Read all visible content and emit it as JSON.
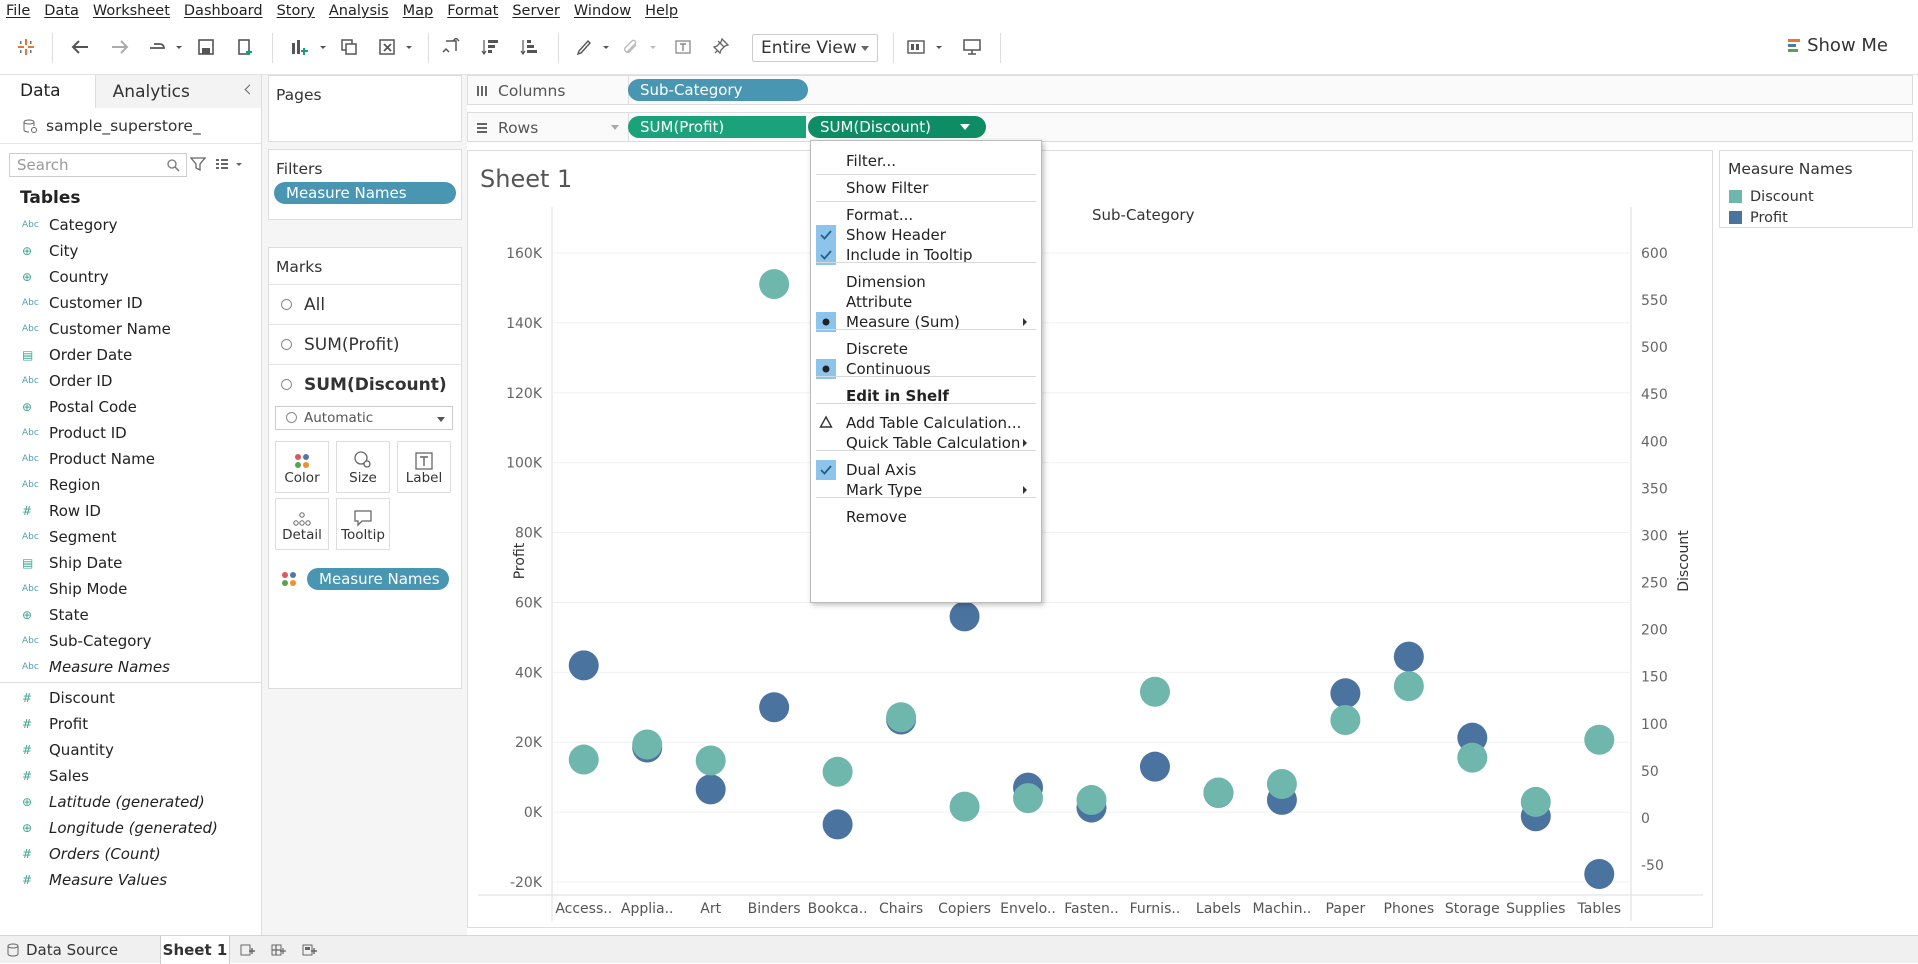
{
  "menu": [
    "File",
    "Data",
    "Worksheet",
    "Dashboard",
    "Story",
    "Analysis",
    "Map",
    "Format",
    "Server",
    "Window",
    "Help"
  ],
  "toolbar": {
    "view": "Entire View",
    "show_me": "Show Me"
  },
  "left": {
    "tab_data": "Data",
    "tab_analytics": "Analytics",
    "datasource": "sample_superstore_",
    "search_placeholder": "Search",
    "tables_heading": "Tables",
    "dimensions": [
      {
        "type": "Abc",
        "name": "Category"
      },
      {
        "type": "geo",
        "name": "City"
      },
      {
        "type": "geo",
        "name": "Country"
      },
      {
        "type": "Abc",
        "name": "Customer ID"
      },
      {
        "type": "Abc",
        "name": "Customer Name"
      },
      {
        "type": "date",
        "name": "Order Date"
      },
      {
        "type": "Abc",
        "name": "Order ID"
      },
      {
        "type": "geo",
        "name": "Postal Code"
      },
      {
        "type": "Abc",
        "name": "Product ID"
      },
      {
        "type": "Abc",
        "name": "Product Name"
      },
      {
        "type": "Abc",
        "name": "Region"
      },
      {
        "type": "#",
        "name": "Row ID"
      },
      {
        "type": "Abc",
        "name": "Segment"
      },
      {
        "type": "date",
        "name": "Ship Date"
      },
      {
        "type": "Abc",
        "name": "Ship Mode"
      },
      {
        "type": "geo",
        "name": "State"
      },
      {
        "type": "Abc",
        "name": "Sub-Category"
      },
      {
        "type": "Abc",
        "name": "Measure Names",
        "italic": true
      }
    ],
    "measures": [
      {
        "type": "#",
        "name": "Discount"
      },
      {
        "type": "#",
        "name": "Profit"
      },
      {
        "type": "#",
        "name": "Quantity"
      },
      {
        "type": "#",
        "name": "Sales"
      },
      {
        "type": "geo",
        "name": "Latitude (generated)",
        "italic": true
      },
      {
        "type": "geo",
        "name": "Longitude (generated)",
        "italic": true
      },
      {
        "type": "#",
        "name": "Orders (Count)",
        "italic": true
      },
      {
        "type": "#",
        "name": "Measure Values",
        "italic": true
      }
    ]
  },
  "pages": {
    "title": "Pages"
  },
  "filters": {
    "title": "Filters",
    "pill": "Measure Names"
  },
  "marks": {
    "title": "Marks",
    "rows": [
      "All",
      "SUM(Profit)",
      "SUM(Discount)"
    ],
    "type": "Automatic",
    "buttons": [
      "Color",
      "Size",
      "Label",
      "Detail",
      "Tooltip"
    ],
    "pill": "Measure Names"
  },
  "columns": {
    "label": "Columns",
    "pill": "Sub-Category"
  },
  "rows": {
    "label": "Rows",
    "pill1": "SUM(Profit)",
    "pill2": "SUM(Discount)"
  },
  "sheet": {
    "title": "Sheet 1"
  },
  "legend": {
    "title": "Measure Names",
    "items": [
      {
        "name": "Discount",
        "color": "#6fb6ad"
      },
      {
        "name": "Profit",
        "color": "#4a73a0"
      }
    ]
  },
  "context_menu": [
    "Filter...",
    "Show Filter",
    "Format...",
    "Show Header",
    "Include in Tooltip",
    "Dimension",
    "Attribute",
    "Measure (Sum)",
    "Discrete",
    "Continuous",
    "Edit in Shelf",
    "Add Table Calculation...",
    "Quick Table Calculation",
    "Dual Axis",
    "Mark Type",
    "Remove"
  ],
  "bottom": {
    "datasource": "Data Source",
    "sheet": "Sheet 1"
  },
  "chart_data": {
    "type": "scatter",
    "title": "Sub-Category",
    "categories": [
      "Access..",
      "Applia..",
      "Art",
      "Binders",
      "Bookca..",
      "Chairs",
      "Copiers",
      "Envelo..",
      "Fasten..",
      "Furnis..",
      "Labels",
      "Machin..",
      "Paper",
      "Phones",
      "Storage",
      "Supplies",
      "Tables"
    ],
    "series": [
      {
        "name": "Profit",
        "axis": "left",
        "values": [
          42000,
          18500,
          6500,
          30000,
          -3500,
          26500,
          56000,
          7000,
          1300,
          13000,
          5500,
          3500,
          34000,
          44500,
          21300,
          -1200,
          -17700
        ]
      },
      {
        "name": "Discount",
        "axis": "right",
        "values": [
          62,
          78,
          61,
          567,
          49,
          107,
          12,
          21,
          19,
          134,
          27,
          36,
          104,
          140,
          64,
          17,
          83
        ]
      }
    ],
    "ylabel": "Profit",
    "y2label": "Discount",
    "yticks": [
      "160K",
      "140K",
      "120K",
      "100K",
      "80K",
      "60K",
      "40K",
      "20K",
      "0K",
      "-20K"
    ],
    "y2ticks": [
      "600",
      "550",
      "500",
      "450",
      "400",
      "350",
      "300",
      "250",
      "200",
      "150",
      "100",
      "50",
      "0",
      "-50"
    ],
    "ylim": [
      -20000,
      160000
    ],
    "y2lim": [
      -50,
      600
    ]
  }
}
